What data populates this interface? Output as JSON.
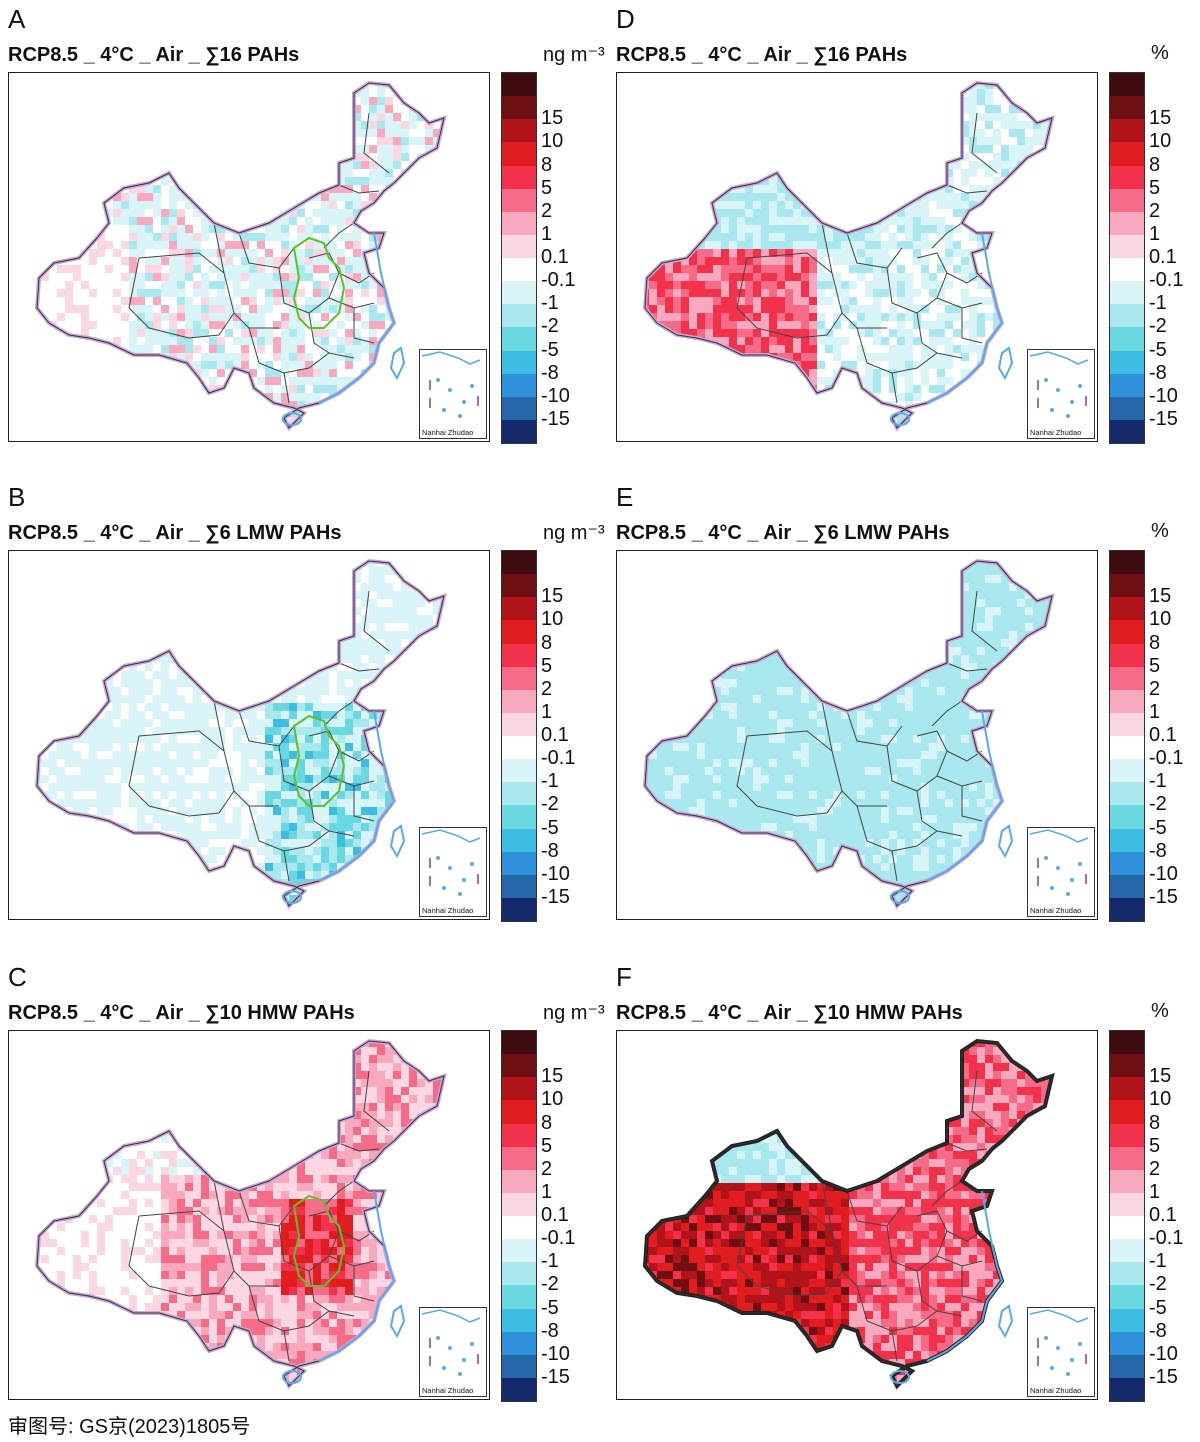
{
  "panels": [
    {
      "id": "A",
      "label": "A",
      "title": "RCP8.5 _ 4°C _ Air _ ∑16 PAHs",
      "unit": "ng m⁻³",
      "pattern": "mixed-light"
    },
    {
      "id": "D",
      "label": "D",
      "title": "RCP8.5 _ 4°C _ Air _ ∑16 PAHs",
      "unit": "%",
      "pattern": "west-red"
    },
    {
      "id": "B",
      "label": "B",
      "title": "RCP8.5 _ 4°C _ Air _ ∑6 LMW PAHs",
      "unit": "ng m⁻³",
      "pattern": "light-blue"
    },
    {
      "id": "E",
      "label": "E",
      "title": "RCP8.5 _ 4°C _ Air _ ∑6 LMW PAHs",
      "unit": "%",
      "pattern": "cyan"
    },
    {
      "id": "C",
      "label": "C",
      "title": "RCP8.5 _ 4°C _ Air _ ∑10 HMW PAHs",
      "unit": "ng m⁻³",
      "pattern": "east-pink"
    },
    {
      "id": "F",
      "label": "F",
      "title": "RCP8.5 _ 4°C _ Air _ ∑10 HMW PAHs",
      "unit": "%",
      "pattern": "strong-red"
    }
  ],
  "legend": {
    "ticks": [
      "15",
      "10",
      "8",
      "5",
      "2",
      "1",
      "0.1",
      "-0.1",
      "-1",
      "-2",
      "-5",
      "-8",
      "-10",
      "-15"
    ],
    "colors": [
      "#3d0a10",
      "#6e0f14",
      "#b0141a",
      "#e21d1f",
      "#f2314a",
      "#f66b88",
      "#f8a9c0",
      "#fbd6e3",
      "#ffffff",
      "#d9f4f6",
      "#a8e8ee",
      "#6ad8e0",
      "#3dbde3",
      "#2f8fd8",
      "#2566a8",
      "#14296a"
    ]
  },
  "inset_label": "Nanhai Zhudao",
  "footer": "审图号: GS京(2023)1805号"
}
